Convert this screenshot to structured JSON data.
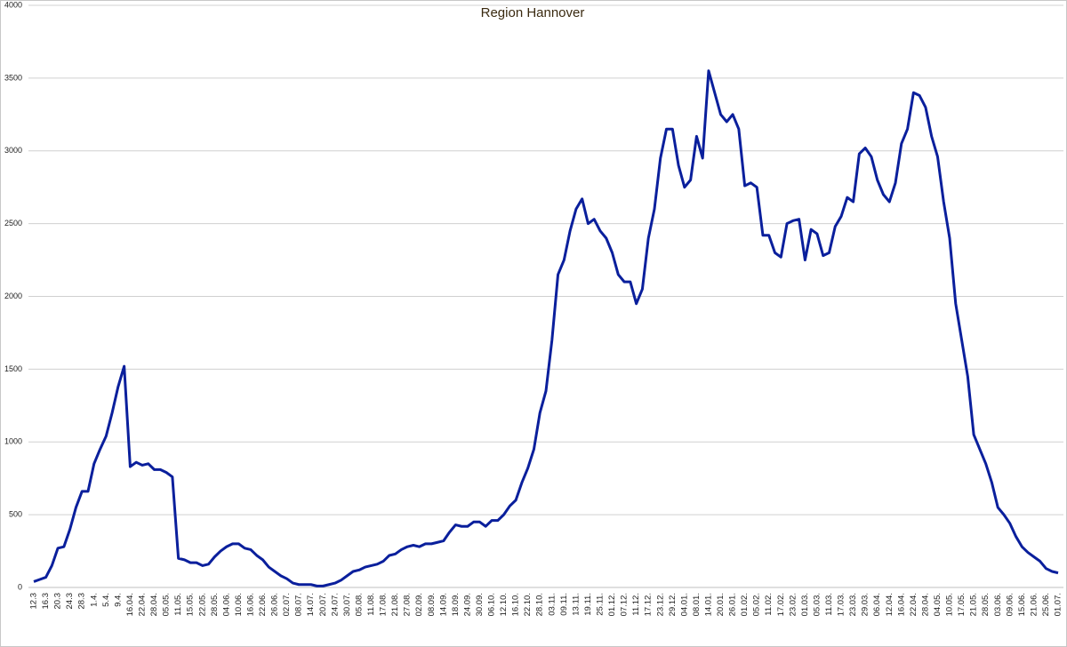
{
  "chart_data": {
    "type": "line",
    "title": "Region Hannover",
    "categories": [
      "12.3",
      null,
      "16.3",
      null,
      "20.3",
      null,
      "24.3",
      null,
      "28.3",
      null,
      "1.4.",
      null,
      "5.4.",
      null,
      "9.4.",
      null,
      "16.04.",
      null,
      "22.04.",
      null,
      "28.04.",
      null,
      "05.05.",
      null,
      "11.05.",
      null,
      "15.05.",
      null,
      "22.05.",
      null,
      "28.05.",
      null,
      "04.06.",
      null,
      "10.06.",
      null,
      "16.06.",
      null,
      "22.06.",
      null,
      "26.06.",
      null,
      "02.07.",
      null,
      "08.07.",
      null,
      "14.07.",
      null,
      "20.07.",
      null,
      "24.07.",
      null,
      "30.07.",
      null,
      "05.08.",
      null,
      "11.08.",
      null,
      "17.08.",
      null,
      "21.08.",
      null,
      "27.08.",
      null,
      "02.09.",
      null,
      "08.09.",
      null,
      "14.09.",
      null,
      "18.09.",
      null,
      "24.09.",
      null,
      "30.09.",
      null,
      "06.10.",
      null,
      "12.10.",
      null,
      "16.10.",
      null,
      "22.10.",
      null,
      "28.10.",
      null,
      "03.11.",
      null,
      "09.11.",
      null,
      "13.11.",
      null,
      "19.11.",
      null,
      "25.11.",
      null,
      "01.12.",
      null,
      "07.12.",
      null,
      "11.12.",
      null,
      "17.12.",
      null,
      "23.12.",
      null,
      "29.12.",
      null,
      "04.01.",
      null,
      "08.01.",
      null,
      "14.01.",
      null,
      "20.01.",
      null,
      "26.01.",
      null,
      "01.02.",
      null,
      "05.02.",
      null,
      "11.02.",
      null,
      "17.02.",
      null,
      "23.02.",
      null,
      "01.03.",
      null,
      "05.03.",
      null,
      "11.03.",
      null,
      "17.03.",
      null,
      "23.03.",
      null,
      "29.03.",
      null,
      "06.04.",
      null,
      "12.04.",
      null,
      "16.04.",
      null,
      "22.04.",
      null,
      "28.04.",
      null,
      "04.05.",
      null,
      "10.05.",
      null,
      "17.05.",
      null,
      "21.05.",
      null,
      "28.05.",
      null,
      "03.06.",
      null,
      "09.06.",
      null,
      "15.06.",
      null,
      "21.06.",
      null,
      "25.06.",
      null,
      "01.07."
    ],
    "series": [
      {
        "name": "Region Hannover",
        "color": "#0a1f9c",
        "values": [
          40,
          55,
          70,
          150,
          270,
          280,
          400,
          550,
          660,
          660,
          850,
          950,
          1040,
          1200,
          1380,
          1520,
          830,
          860,
          840,
          850,
          810,
          810,
          790,
          760,
          200,
          190,
          170,
          170,
          150,
          160,
          210,
          250,
          280,
          300,
          300,
          270,
          260,
          220,
          190,
          140,
          110,
          80,
          60,
          30,
          20,
          20,
          20,
          10,
          10,
          20,
          30,
          50,
          80,
          110,
          120,
          140,
          150,
          160,
          180,
          220,
          230,
          260,
          280,
          290,
          280,
          300,
          300,
          310,
          320,
          380,
          430,
          420,
          420,
          450,
          450,
          420,
          460,
          460,
          500,
          560,
          600,
          720,
          820,
          950,
          1200,
          1350,
          1700,
          2150,
          2250,
          2450,
          2600,
          2670,
          2500,
          2530,
          2450,
          2400,
          2300,
          2150,
          2100,
          2100,
          1950,
          2050,
          2400,
          2600,
          2950,
          3150,
          3150,
          2900,
          2750,
          2800,
          3100,
          2950,
          3550,
          3400,
          3250,
          3200,
          3250,
          3150,
          2760,
          2780,
          2750,
          2420,
          2420,
          2300,
          2270,
          2500,
          2520,
          2530,
          2250,
          2460,
          2430,
          2280,
          2300,
          2480,
          2550,
          2680,
          2650,
          2980,
          3020,
          2960,
          2800,
          2700,
          2650,
          2780,
          3050,
          3150,
          3400,
          3380,
          3300,
          3100,
          2960,
          2650,
          2400,
          1950,
          1700,
          1450,
          1050,
          950,
          850,
          720,
          550,
          500,
          440,
          350,
          280,
          240,
          210,
          180,
          130,
          110,
          100
        ]
      }
    ],
    "ylim": [
      0,
      4000
    ],
    "yticks": [
      0,
      500,
      1000,
      1500,
      2000,
      2500,
      3000,
      3500,
      4000
    ],
    "grid": true
  }
}
